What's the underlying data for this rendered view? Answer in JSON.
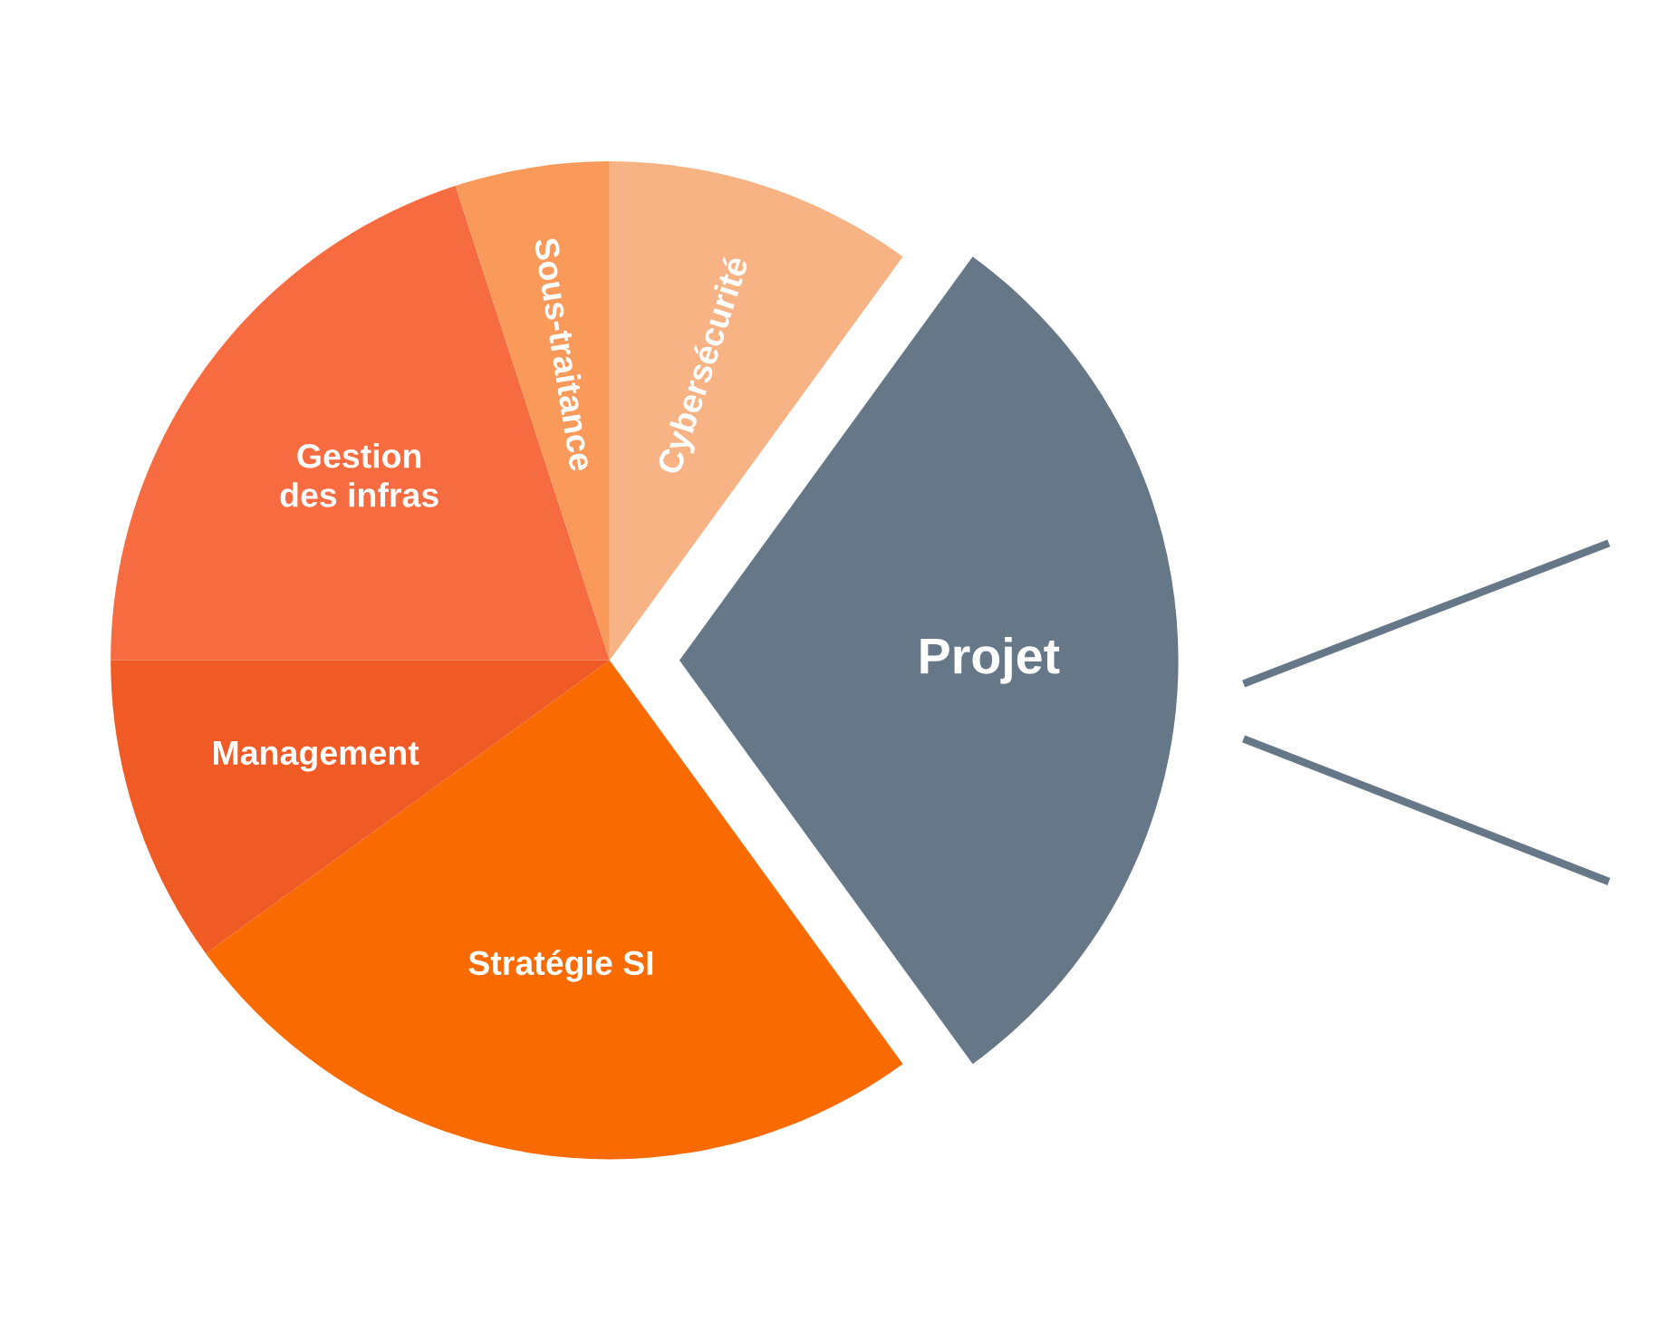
{
  "chart_data": {
    "type": "pie",
    "categories": [
      "Cybersécurité",
      "Projet",
      "Stratégie SI",
      "Management",
      "Gestion\ndes infras",
      "Sous-traitance"
    ],
    "values": [
      10,
      30,
      25,
      10,
      20,
      5
    ],
    "colors": [
      "#f8b384",
      "#667788",
      "#f96a00",
      "#f05a24",
      "#f66c40",
      "#f99a5a"
    ]
  }
}
